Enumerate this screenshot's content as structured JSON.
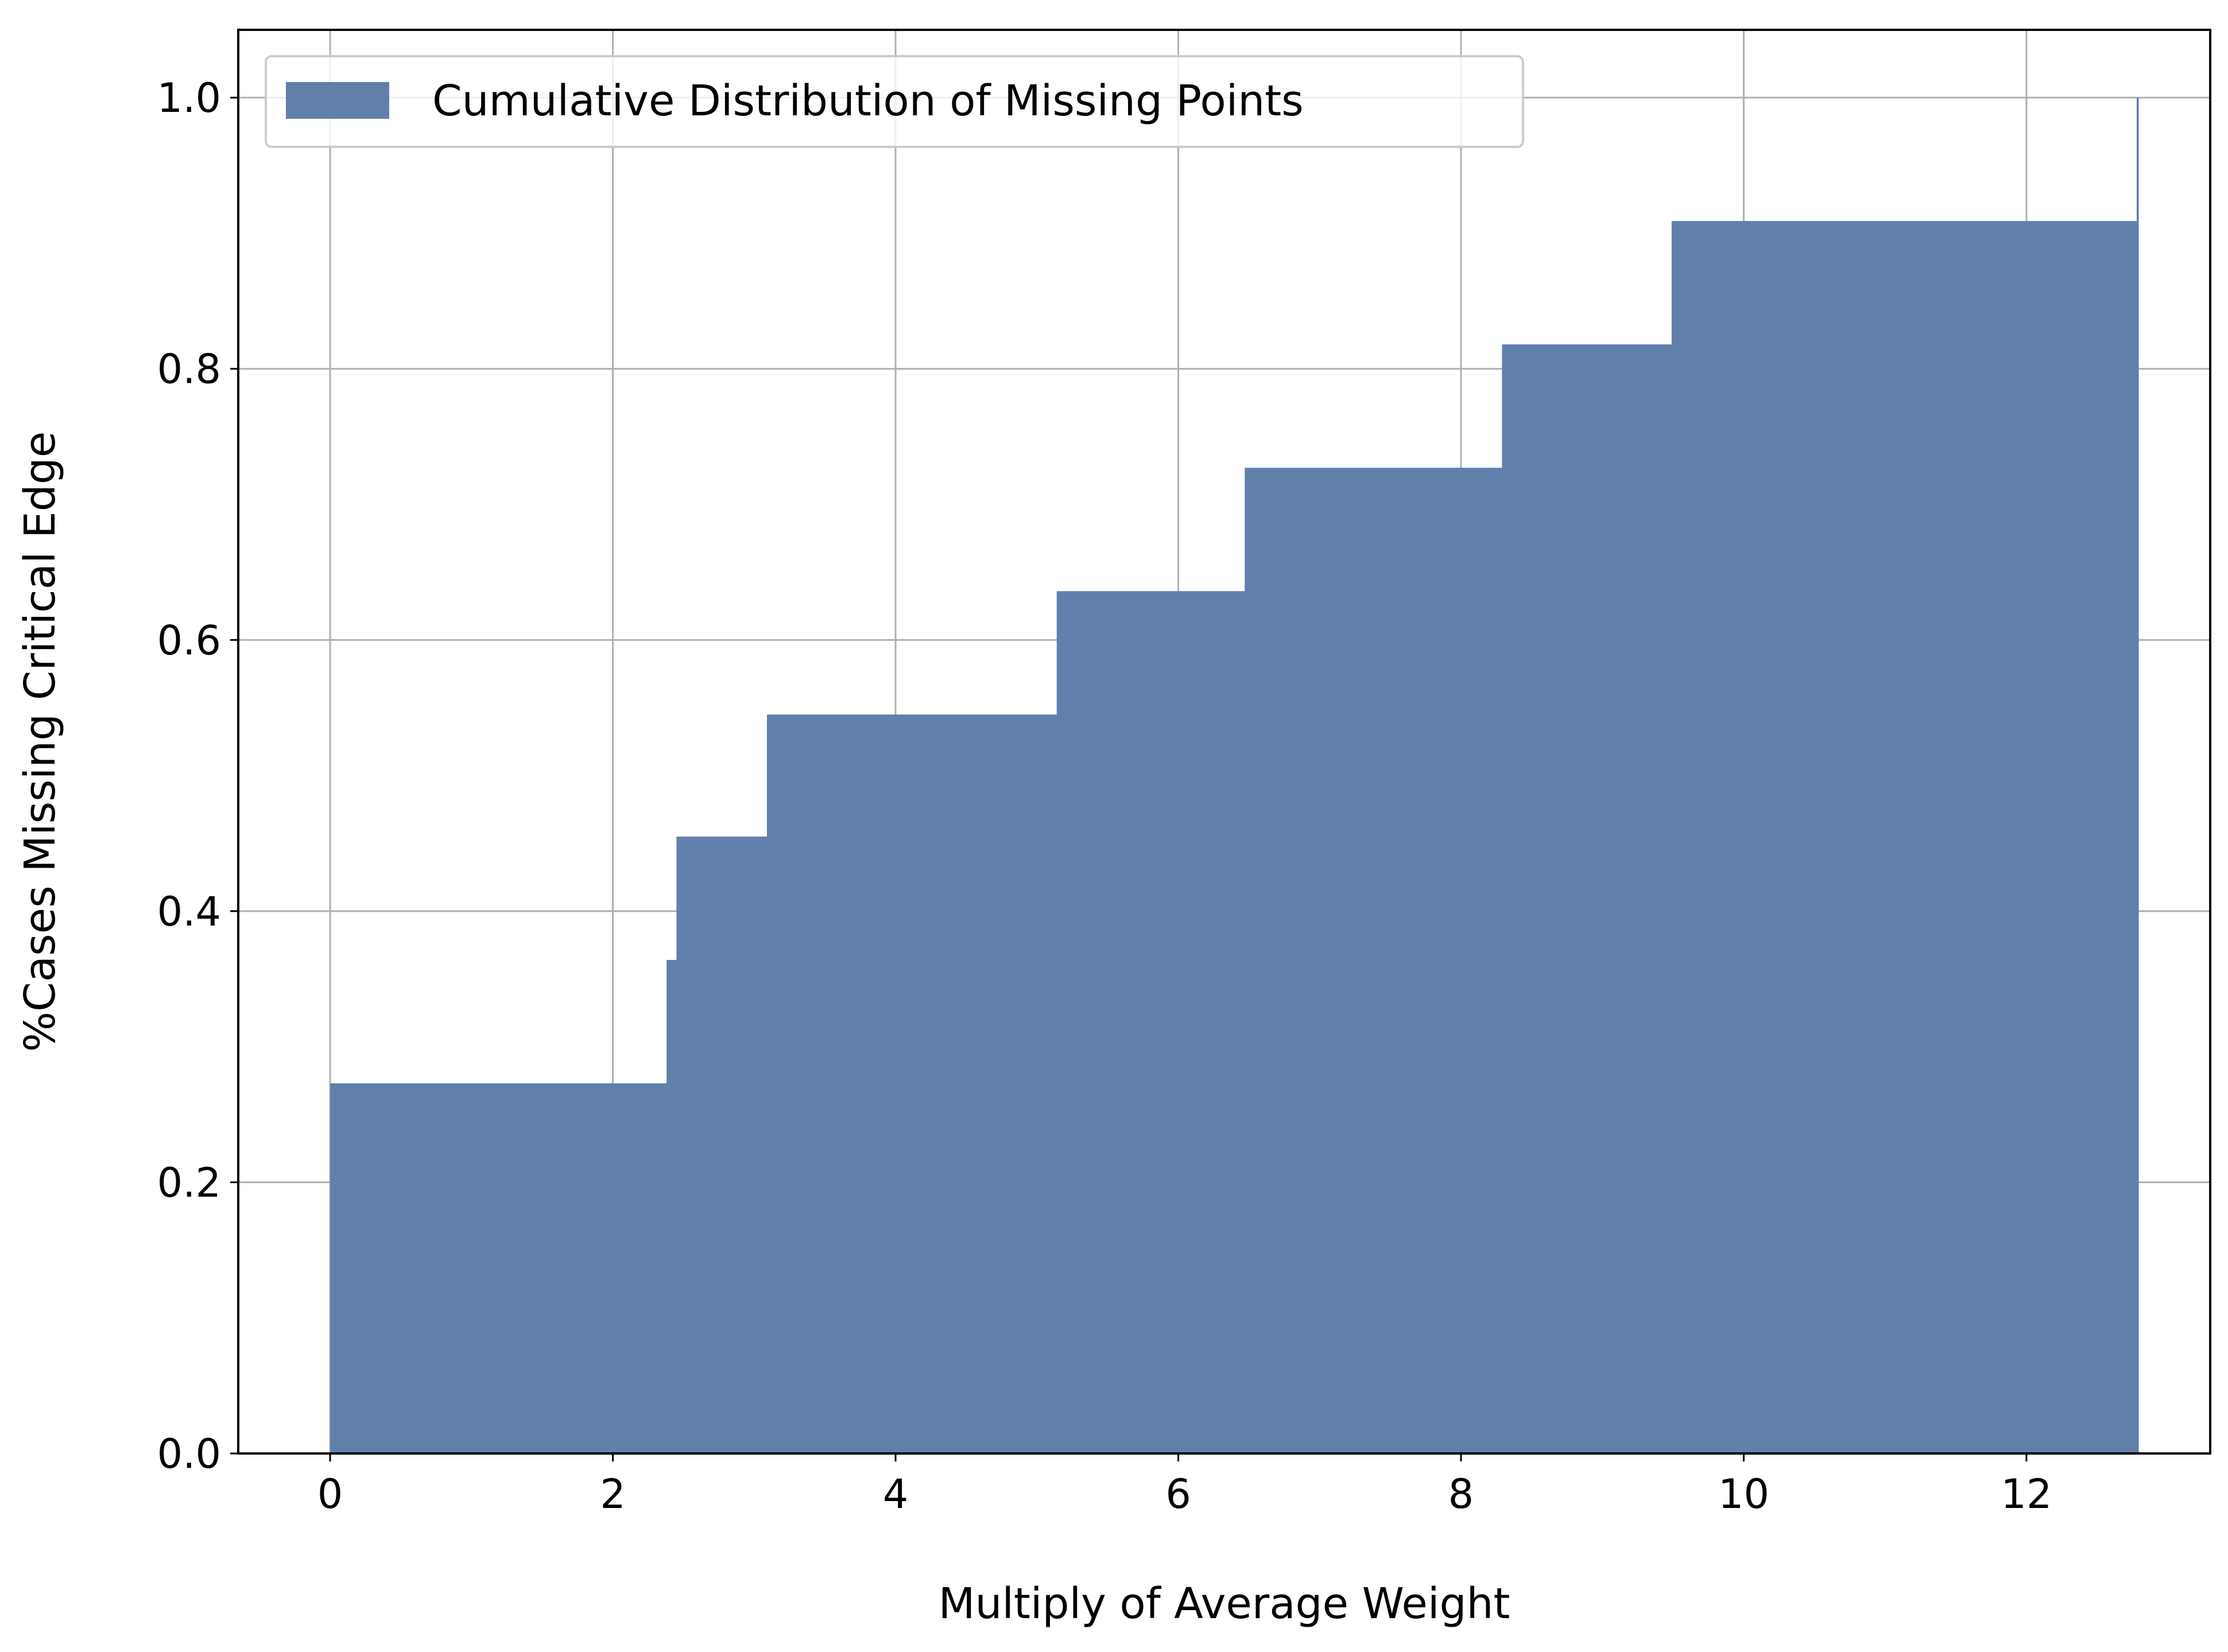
{
  "chart_data": {
    "type": "area",
    "step": true,
    "xlabel": "Multiply of Average Weight",
    "ylabel": "%Cases Missing Critical Edge",
    "xlim": [
      -0.65,
      13.3
    ],
    "ylim": [
      0.0,
      1.05
    ],
    "x_ticks": [
      0,
      2,
      4,
      6,
      8,
      10,
      12
    ],
    "y_ticks": [
      0.0,
      0.2,
      0.4,
      0.6,
      0.8,
      1.0
    ],
    "x_tick_labels": [
      "0",
      "2",
      "4",
      "6",
      "8",
      "10",
      "12"
    ],
    "y_tick_labels": [
      "0.0",
      "0.2",
      "0.4",
      "0.6",
      "0.8",
      "1.0"
    ],
    "grid": true,
    "legend_position": "top-left",
    "series": [
      {
        "name": "Cumulative Distribution of Missing Points",
        "color": "#6080ab",
        "steps": [
          {
            "x_start": 0.0,
            "x_end": 2.38,
            "y": 0.273
          },
          {
            "x_start": 2.38,
            "x_end": 2.45,
            "y": 0.364
          },
          {
            "x_start": 2.45,
            "x_end": 3.09,
            "y": 0.455
          },
          {
            "x_start": 3.09,
            "x_end": 5.14,
            "y": 0.545
          },
          {
            "x_start": 5.14,
            "x_end": 6.47,
            "y": 0.636
          },
          {
            "x_start": 6.47,
            "x_end": 8.29,
            "y": 0.727
          },
          {
            "x_start": 8.29,
            "x_end": 9.49,
            "y": 0.818
          },
          {
            "x_start": 9.49,
            "x_end": 12.78,
            "y": 0.909
          },
          {
            "x_start": 12.78,
            "x_end": 12.79,
            "y": 1.0
          }
        ]
      }
    ]
  },
  "colors": {
    "grid": "#b0b0b0",
    "axes": "#000000",
    "legend_border": "#cccccc"
  }
}
